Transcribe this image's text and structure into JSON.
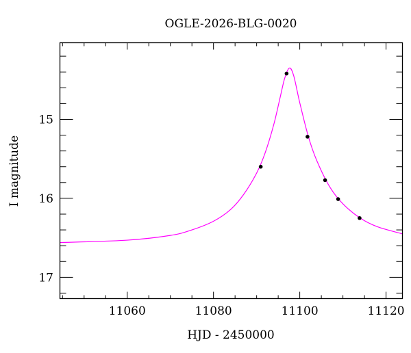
{
  "chart_data": {
    "type": "scatter",
    "title": "OGLE-2026-BLG-0020",
    "xlabel": "HJD - 2450000",
    "ylabel": "I magnitude",
    "xlim": [
      11044.4,
      11123.8
    ],
    "ylim": [
      17.27,
      14.03
    ],
    "y_inverted": true,
    "grid": false,
    "x_ticks": [
      11060,
      11080,
      11100,
      11120
    ],
    "x_tick_labels": [
      "11060",
      "11080",
      "11100",
      "11120"
    ],
    "x_minor_step": 5,
    "y_ticks": [
      15,
      16,
      17
    ],
    "y_tick_labels": [
      "15",
      "16",
      "17"
    ],
    "y_minor_step": 0.2,
    "colors": {
      "data": "#000000",
      "model": "#ff00ff"
    },
    "series": [
      {
        "type": "scatter",
        "x": [
          11090.95,
          11096.94,
          11101.79,
          11105.87,
          11108.89,
          11113.86
        ],
        "y": [
          15.6,
          14.42,
          15.22,
          15.77,
          16.01,
          16.25
        ]
      },
      {
        "type": "line",
        "x": [
          11044.4,
          11060,
          11070,
          11075,
          11080,
          11084,
          11087,
          11090,
          11092,
          11094,
          11095.5,
          11096.5,
          11097.6,
          11098.6,
          11100,
          11102,
          11104,
          11107,
          11110,
          11114,
          11118,
          11123.8
        ],
        "y": [
          16.56,
          16.53,
          16.47,
          16.4,
          16.29,
          16.14,
          15.95,
          15.68,
          15.42,
          15.06,
          14.71,
          14.48,
          14.35,
          14.45,
          14.79,
          15.22,
          15.53,
          15.86,
          16.07,
          16.25,
          16.36,
          16.45
        ]
      }
    ]
  }
}
